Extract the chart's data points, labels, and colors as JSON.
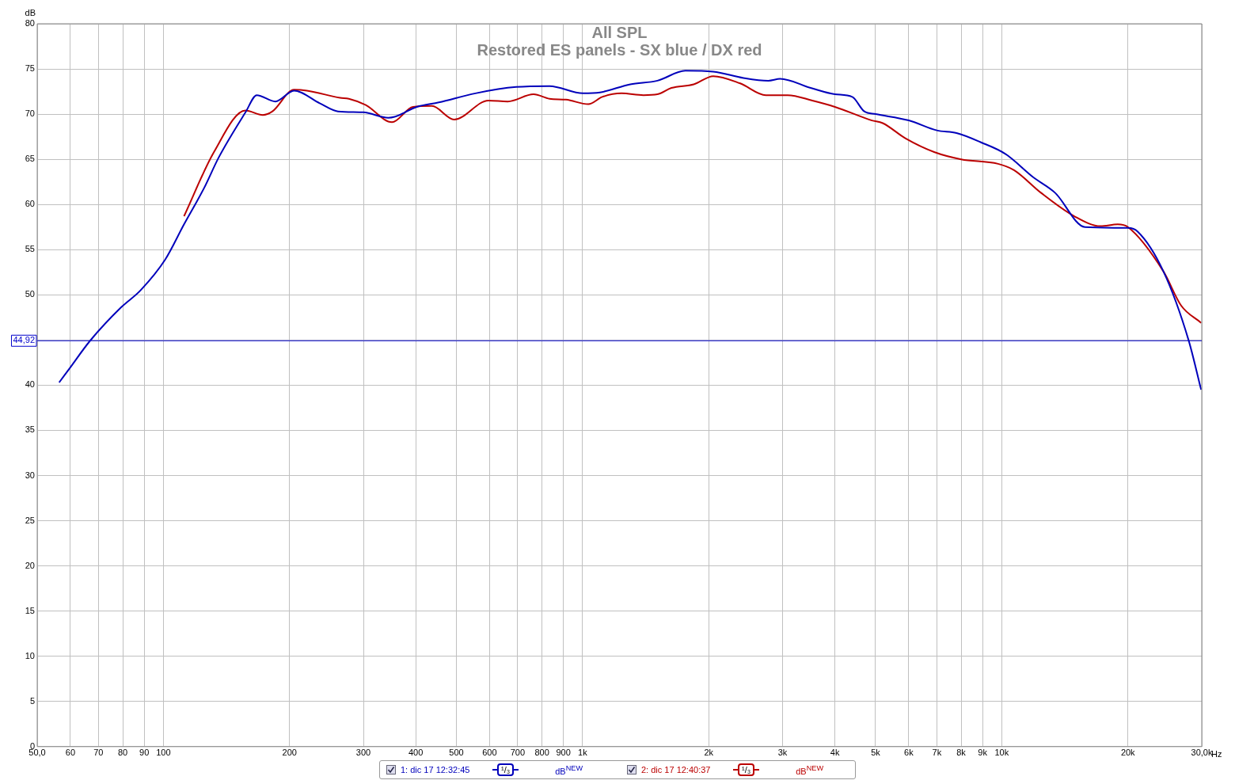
{
  "chart_data": {
    "type": "line",
    "title": "All SPL",
    "subtitle": "Restored ES panels - SX blue / DX red",
    "xlabel": "Hz",
    "ylabel": "dB",
    "log": "x",
    "grid": true,
    "legend": "bottom",
    "marker": "none",
    "line_style": "solid",
    "xlim": [
      50,
      30000
    ],
    "xticks": [
      {
        "value": 50,
        "label": "50,0"
      },
      60,
      70,
      80,
      90,
      100,
      200,
      300,
      400,
      500,
      600,
      700,
      800,
      900,
      {
        "value": 1000,
        "label": "1k"
      },
      {
        "value": 2000,
        "label": "2k"
      },
      {
        "value": 3000,
        "label": "3k"
      },
      {
        "value": 4000,
        "label": "4k"
      },
      {
        "value": 5000,
        "label": "5k"
      },
      {
        "value": 6000,
        "label": "6k"
      },
      {
        "value": 7000,
        "label": "7k"
      },
      {
        "value": 8000,
        "label": "8k"
      },
      {
        "value": 9000,
        "label": "9k"
      },
      {
        "value": 10000,
        "label": "10k"
      },
      {
        "value": 20000,
        "label": "20k"
      },
      {
        "value": 30000,
        "label": "30,0k"
      }
    ],
    "ylim": [
      0,
      80
    ],
    "yticks": [
      0,
      5,
      10,
      15,
      20,
      25,
      30,
      35,
      40,
      {
        "value": 45,
        "label": null
      },
      50,
      55,
      60,
      65,
      70,
      75,
      80
    ],
    "ref_lines": [
      {
        "axis": "y",
        "value": 44.92,
        "label": "44,92",
        "color": "#0000cc"
      }
    ],
    "annotations": [
      "¹/₃",
      "dB$^{NEW}$"
    ],
    "series": [
      {
        "name": "1: dic 17 12:32:45",
        "color": "#0000bb",
        "x": [
          56.4,
          59.6,
          66.8,
          79.2,
          88.2,
          101,
          112,
          125,
          135.5,
          157,
          167,
          185,
          205,
          236,
          261,
          300,
          344,
          356,
          402,
          454,
          555,
          695,
          834,
          1002,
          1100,
          1300,
          1509,
          1758,
          2050,
          2420,
          2774,
          2960,
          3500,
          4000,
          4400,
          4700,
          5000,
          6000,
          7000,
          7800,
          8900,
          10200,
          11900,
          13400,
          15800,
          20000,
          21100,
          24300,
          27900,
          29900
        ],
        "values": [
          40.3,
          41.8,
          44.9,
          48.6,
          50.5,
          53.9,
          57.8,
          61.8,
          65.2,
          70.2,
          72.1,
          71.4,
          72.6,
          71.2,
          70.3,
          70.2,
          69.6,
          69.7,
          70.8,
          71.3,
          72.3,
          73.0,
          73.1,
          72.3,
          72.4,
          73.3,
          73.7,
          74.8,
          74.7,
          74.0,
          73.7,
          73.9,
          72.9,
          72.2,
          71.9,
          70.3,
          70.0,
          69.3,
          68.2,
          67.9,
          66.9,
          65.6,
          63.0,
          61.3,
          57.5,
          57.4,
          57.0,
          52.6,
          45.0,
          39.5
        ]
      },
      {
        "name": "2: dic 17 12:40:37",
        "color": "#bb0000",
        "x": [
          112,
          132,
          157,
          172.6,
          182,
          205,
          220,
          264,
          277,
          304,
          351,
          394,
          437,
          494,
          596,
          663,
          764,
          834,
          913,
          1032,
          1114,
          1239,
          1397,
          1509,
          1629,
          1842,
          2050,
          2377,
          2738,
          3085,
          3533,
          4000,
          4900,
          5200,
          5900,
          6900,
          8000,
          9800,
          10700,
          12400,
          14900,
          17200,
          18900,
          20000,
          24300,
          26800,
          29900
        ],
        "values": [
          58.7,
          65.8,
          70.4,
          69.9,
          70.3,
          72.7,
          72.6,
          71.8,
          71.7,
          71.0,
          69.1,
          70.8,
          70.9,
          69.4,
          71.5,
          71.4,
          72.2,
          71.7,
          71.6,
          71.1,
          71.9,
          72.3,
          72.1,
          72.2,
          72.9,
          73.3,
          74.2,
          73.4,
          72.1,
          72.1,
          71.5,
          70.8,
          69.3,
          69.0,
          67.3,
          65.8,
          65.0,
          64.5,
          63.8,
          61.3,
          58.7,
          57.6,
          57.8,
          57.5,
          52.6,
          48.8,
          46.9
        ]
      }
    ]
  }
}
